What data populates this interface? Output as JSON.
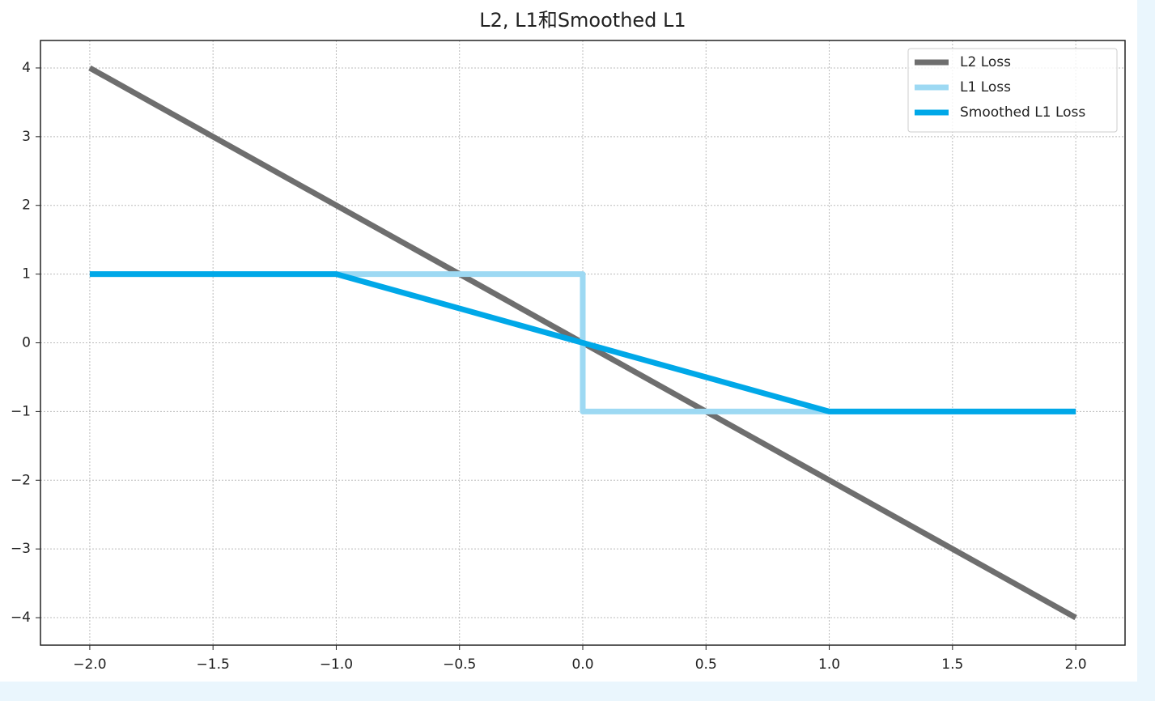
{
  "chart_data": {
    "type": "line",
    "title": "L2, L1和Smoothed L1",
    "series": [
      {
        "name": "L2 Loss",
        "color": "#6e6e6e",
        "x": [
          -2,
          2
        ],
        "values": [
          4,
          -4
        ]
      },
      {
        "name": "L1 Loss",
        "color": "#9dd9f3",
        "x": [
          -2,
          0,
          0,
          2
        ],
        "values": [
          1,
          1,
          -1,
          -1
        ]
      },
      {
        "name": "Smoothed L1 Loss",
        "color": "#00a8e8",
        "x": [
          -2,
          -1,
          1,
          2
        ],
        "values": [
          1,
          1,
          -1,
          -1
        ]
      }
    ],
    "xlim": [
      -2.2,
      2.2
    ],
    "xticks": [
      {
        "value": -2,
        "label": "−2.0"
      },
      {
        "value": -1.5,
        "label": "−1.5"
      },
      {
        "value": -1,
        "label": "−1.0"
      },
      {
        "value": -0.5,
        "label": "−0.5"
      },
      {
        "value": 0,
        "label": "0.0"
      },
      0.5,
      {
        "value": 1,
        "label": "1.0"
      },
      1.5,
      {
        "value": 2,
        "label": "2.0"
      }
    ],
    "ylim": [
      -4.4,
      4.4
    ],
    "yticks": [
      {
        "value": -4,
        "label": "−4"
      },
      {
        "value": -3,
        "label": "−3"
      },
      {
        "value": -2,
        "label": "−2"
      },
      {
        "value": -1,
        "label": "−1"
      },
      0,
      1,
      2,
      3,
      4
    ],
    "grid": true,
    "legend": "upper right"
  }
}
